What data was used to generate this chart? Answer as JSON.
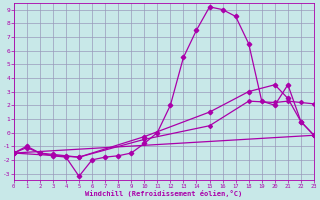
{
  "background_color": "#c8e8e8",
  "grid_color": "#9999bb",
  "line_color": "#aa00aa",
  "xlim": [
    0,
    23
  ],
  "ylim": [
    -3.5,
    9.5
  ],
  "xticks": [
    0,
    1,
    2,
    3,
    4,
    5,
    6,
    7,
    8,
    9,
    10,
    11,
    12,
    13,
    14,
    15,
    16,
    17,
    18,
    19,
    20,
    21,
    22,
    23
  ],
  "yticks": [
    -3,
    -2,
    -1,
    0,
    1,
    2,
    3,
    4,
    5,
    6,
    7,
    8,
    9
  ],
  "xlabel": "Windchill (Refroidissement éolien,°C)",
  "line1_x": [
    0,
    1,
    2,
    3,
    4,
    5,
    6,
    7,
    8,
    9,
    10,
    11,
    12,
    13,
    14,
    15,
    16,
    17,
    18,
    19,
    20,
    21,
    22,
    23
  ],
  "line1_y": [
    -1.5,
    -1.0,
    -1.5,
    -1.7,
    -1.8,
    -3.2,
    -2.0,
    -1.8,
    -1.7,
    -1.5,
    -0.8,
    0.0,
    2.0,
    5.5,
    7.5,
    9.2,
    9.0,
    8.5,
    6.5,
    2.3,
    2.0,
    3.5,
    0.8,
    -0.2
  ],
  "line2_x": [
    0,
    1,
    2,
    3,
    4,
    5,
    10,
    15,
    18,
    20,
    21,
    22,
    23
  ],
  "line2_y": [
    -1.5,
    -1.1,
    -1.5,
    -1.6,
    -1.7,
    -1.8,
    -0.3,
    1.5,
    3.0,
    3.5,
    2.5,
    0.8,
    -0.2
  ],
  "line3_x": [
    0,
    23
  ],
  "line3_y": [
    -1.5,
    -0.2
  ],
  "line4_x": [
    0,
    5,
    10,
    15,
    18,
    20,
    21,
    22,
    23
  ],
  "line4_y": [
    -1.5,
    -1.8,
    -0.5,
    0.5,
    2.3,
    2.2,
    2.3,
    2.2,
    2.1
  ]
}
